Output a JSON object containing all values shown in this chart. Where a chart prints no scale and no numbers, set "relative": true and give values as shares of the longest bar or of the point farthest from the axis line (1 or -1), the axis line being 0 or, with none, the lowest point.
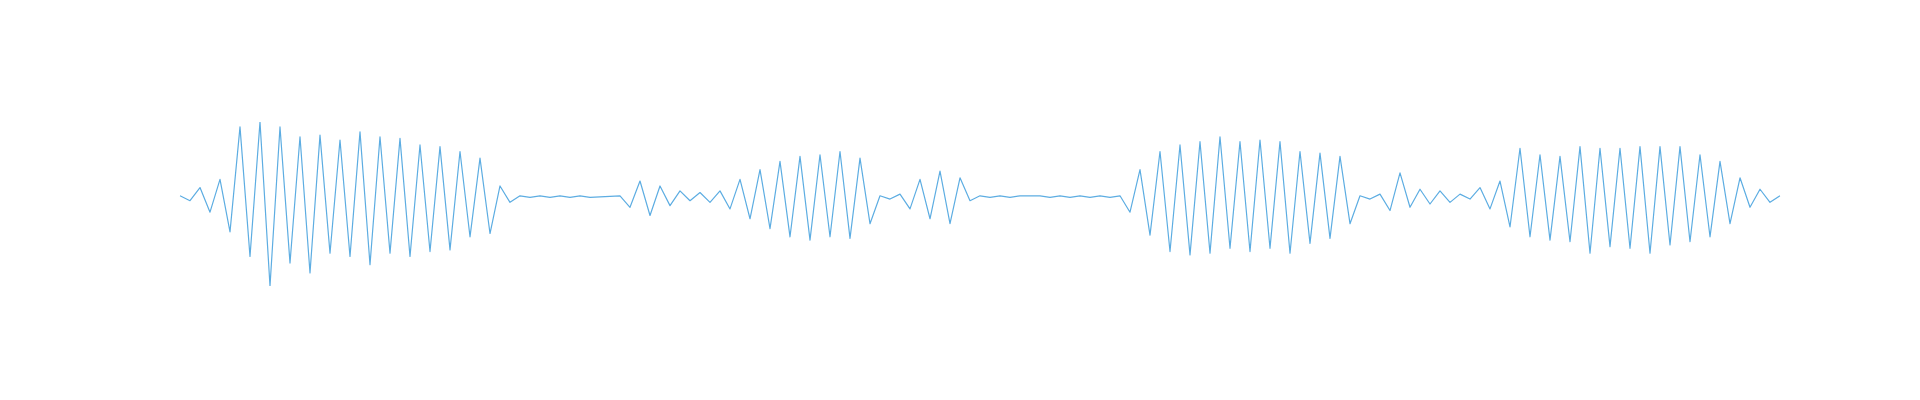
{
  "chart_data": {
    "type": "line",
    "relative": true,
    "color": "#5dade2",
    "categories": [
      null,
      null,
      null,
      null,
      null,
      null,
      null,
      null,
      null,
      null,
      null,
      null,
      null,
      null,
      null,
      null,
      null,
      null,
      null,
      null,
      null,
      null,
      null,
      null,
      null,
      null,
      null,
      null,
      null,
      null,
      null,
      null,
      null,
      null,
      null,
      null,
      null,
      null,
      null,
      null,
      null,
      null,
      null,
      null,
      null,
      null,
      null,
      null,
      null,
      null,
      null,
      null,
      null,
      null,
      null,
      null,
      null,
      null,
      null,
      null,
      null,
      null,
      null,
      null,
      null,
      null,
      null,
      null,
      null,
      null,
      null,
      null,
      null,
      null,
      null,
      null,
      null,
      null,
      null,
      null,
      null,
      null,
      null,
      null,
      null,
      null,
      null,
      null,
      null,
      null,
      null,
      null,
      null,
      null,
      null,
      null,
      null,
      null,
      null,
      null,
      null,
      null,
      null,
      null,
      null,
      null,
      null,
      null,
      null,
      null,
      null,
      null,
      null,
      null,
      null,
      null,
      null,
      null,
      null,
      null,
      null,
      null,
      null,
      null,
      null,
      null,
      null,
      null,
      null,
      null,
      null,
      null,
      null,
      null,
      null,
      null,
      null,
      null,
      null,
      null,
      null,
      null,
      null,
      null,
      null,
      null,
      null,
      null,
      null,
      null,
      null,
      null,
      null,
      null,
      null,
      null,
      null,
      null,
      null,
      null,
      null
    ],
    "values": [
      0.55,
      0.52,
      0.6,
      0.45,
      0.65,
      0.33,
      0.97,
      0.18,
      1,
      0,
      0.97,
      0.14,
      0.91,
      0.08,
      0.92,
      0.2,
      0.89,
      0.18,
      0.94,
      0.13,
      0.91,
      0.2,
      0.9,
      0.18,
      0.86,
      0.21,
      0.85,
      0.22,
      0.82,
      0.3,
      0.78,
      0.32,
      0.61,
      0.51,
      0.55,
      0.54,
      0.55,
      0.54,
      0.55,
      0.54,
      0.55,
      0.54,
      null,
      null,
      0.55,
      0.48,
      0.64,
      0.43,
      0.61,
      0.49,
      0.58,
      0.52,
      0.57,
      0.51,
      0.58,
      0.47,
      0.65,
      0.41,
      0.71,
      0.35,
      0.76,
      0.3,
      0.79,
      0.28,
      0.8,
      0.3,
      0.82,
      0.29,
      0.78,
      0.38,
      0.55,
      0.53,
      0.56,
      0.47,
      0.65,
      0.41,
      0.7,
      0.38,
      0.66,
      0.52,
      0.55,
      0.54,
      0.55,
      0.54,
      0.55,
      null,
      0.55,
      0.54,
      0.55,
      0.54,
      0.55,
      0.54,
      0.55,
      0.54,
      0.55,
      0.45,
      0.71,
      0.31,
      0.82,
      0.21,
      0.86,
      0.19,
      0.88,
      0.2,
      0.91,
      0.23,
      0.88,
      0.21,
      0.89,
      0.23,
      0.88,
      0.2,
      0.82,
      0.26,
      0.81,
      0.29,
      0.79,
      0.38,
      0.55,
      0.53,
      0.56,
      0.46,
      0.69,
      0.48,
      0.59,
      0.5,
      0.58,
      0.51,
      0.56,
      0.53,
      0.6,
      0.47,
      0.64,
      0.36,
      0.84,
      0.3,
      0.8,
      0.28,
      0.79,
      0.27,
      0.85,
      0.2,
      0.84,
      0.24,
      0.84,
      0.23,
      0.85,
      0.2,
      0.85,
      0.25,
      0.85,
      0.27,
      0.8,
      0.3,
      0.76,
      0.38,
      0.66,
      0.48,
      0.59,
      0.51,
      0.55
    ]
  }
}
